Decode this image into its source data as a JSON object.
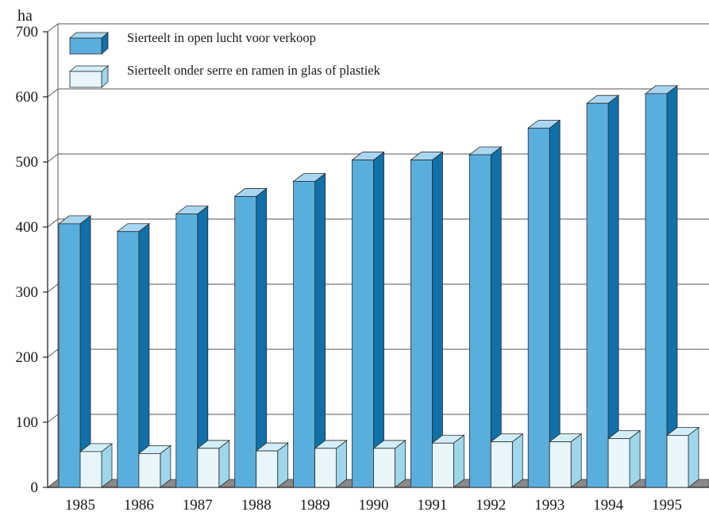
{
  "chart_data": {
    "type": "bar",
    "unit_label": "ha",
    "categories": [
      "1985",
      "1986",
      "1987",
      "1988",
      "1989",
      "1990",
      "1991",
      "1992",
      "1993",
      "1994",
      "1995"
    ],
    "series": [
      {
        "name": "Sierteelt in open lucht voor verkoop",
        "values": [
          405,
          393,
          420,
          447,
          470,
          503,
          503,
          511,
          552,
          590,
          605
        ],
        "color": "#5aaede",
        "side_color": "#1070a8",
        "top_color": "#a8d6f0"
      },
      {
        "name": "Sierteelt onder serre en ramen in glas of plastiek",
        "values": [
          55,
          52,
          60,
          56,
          60,
          60,
          68,
          70,
          70,
          75,
          80
        ],
        "color": "#e8f6fb",
        "side_color": "#9ed6ec",
        "top_color": "#d2eef8"
      }
    ],
    "y_ticks": [
      0,
      100,
      200,
      300,
      400,
      500,
      600,
      700
    ],
    "ylim": [
      0,
      700
    ],
    "grid": true,
    "legend_position": "top-left",
    "floor_color": "#8a8a8a"
  }
}
